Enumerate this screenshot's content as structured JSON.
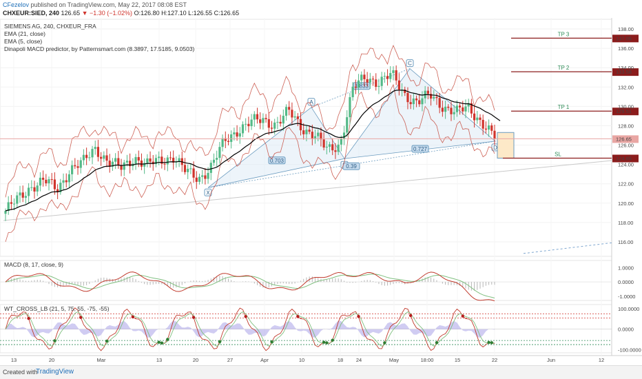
{
  "header": {
    "user": "CFezelov",
    "published": " published on TradingView.com, May 22, 2017 08:08 EST",
    "symbol": "CHXEUR:SIED, 240",
    "last": "126.65",
    "change": "▼ −1.30 (−1.02%)",
    "ohlc": "O:126.80 H:127.10 L:126.55 C:126.65"
  },
  "legend": {
    "title": "SIEMENS AG, 240, CHXEUR_FRA",
    "ema21": "EMA (21, close)",
    "ema5": "EMA (5, close)",
    "macd_pred": "Dinapoli MACD predictor, by Patternsmart.com (8.3897, 17.5185, 9.0503)"
  },
  "pattern_labels": {
    "x": "X",
    "a": "A",
    "b": "B",
    "c": "C",
    "d": "D",
    "xb": "0.703",
    "ac": "1.833",
    "bd": "0.39",
    "xd": "0.727"
  },
  "targets": [
    {
      "name": "TP 3",
      "value": 137.05,
      "label": "137.05",
      "color": "#8b1c1c"
    },
    {
      "name": "TP 2",
      "value": 133.58,
      "label": "133.58",
      "color": "#8b1c1c"
    },
    {
      "name": "TP 1",
      "value": 129.51,
      "label": "129.51",
      "color": "#8b1c1c"
    },
    {
      "name": "SL",
      "value": 124.65,
      "label": "124.65",
      "color": "#8b1c1c"
    }
  ],
  "price_tag": {
    "value": 126.65,
    "label": "126.65"
  },
  "macd_pane": {
    "title": "MACD (8, 17, close, 9)",
    "ticks": [
      "1.0000",
      "0.0000",
      "-1.0000"
    ]
  },
  "wt_pane": {
    "title": "WT_CROSS_LB (21, 5, 75, 55, -75, -55)",
    "ticks": [
      "100.0000",
      "0.0000",
      "-100.0000"
    ]
  },
  "footer": {
    "created": "Created with",
    "brand": "TradingView"
  },
  "colors": {
    "up": "#53b987",
    "down": "#d0342c",
    "ema21": "#000000",
    "ema5": "#c0392b",
    "pattern": "#6a9bbf",
    "pattern_fill": "#dbe9f5",
    "target": "#8b1c1c",
    "tp_text": "#2e8b57",
    "macd": "#c0392b",
    "signal": "#7fbf7f"
  },
  "chart_data": {
    "type": "candlestick",
    "title": "SIEMENS AG, 240, CHXEUR_FRA",
    "price_range": [
      114.5,
      139
    ],
    "yticks": [
      116,
      118,
      120,
      122,
      124,
      126,
      128,
      130,
      132,
      134,
      136,
      138
    ],
    "xticks": [
      "13",
      "20",
      "Mar",
      "13",
      "20",
      "27",
      "Apr",
      "10",
      "18",
      "24",
      "May",
      "18:00",
      "15",
      "22",
      "Jun",
      "12"
    ],
    "close_path": [
      119.2,
      120.4,
      121.8,
      122.3,
      121.4,
      123.5,
      124.1,
      125.8,
      124.2,
      123.6,
      124.8,
      123.9,
      124.4,
      124.9,
      123.2,
      122.6,
      123.8,
      126.3,
      127.6,
      128.3,
      128.6,
      128.2,
      129.4,
      127.9,
      127.1,
      125.4,
      126.2,
      131.8,
      133.0,
      132.6,
      133.2,
      131.3,
      130.4,
      131.1,
      130.1,
      129.3,
      129.9,
      128.4,
      126.65
    ],
    "pattern_points": {
      "X": 121.6,
      "A": 129.9,
      "B": 124.6,
      "C": 133.9,
      "D": 126.4
    },
    "macd_range": [
      -1.3,
      1.5
    ],
    "wt_range": [
      -115,
      120
    ]
  }
}
